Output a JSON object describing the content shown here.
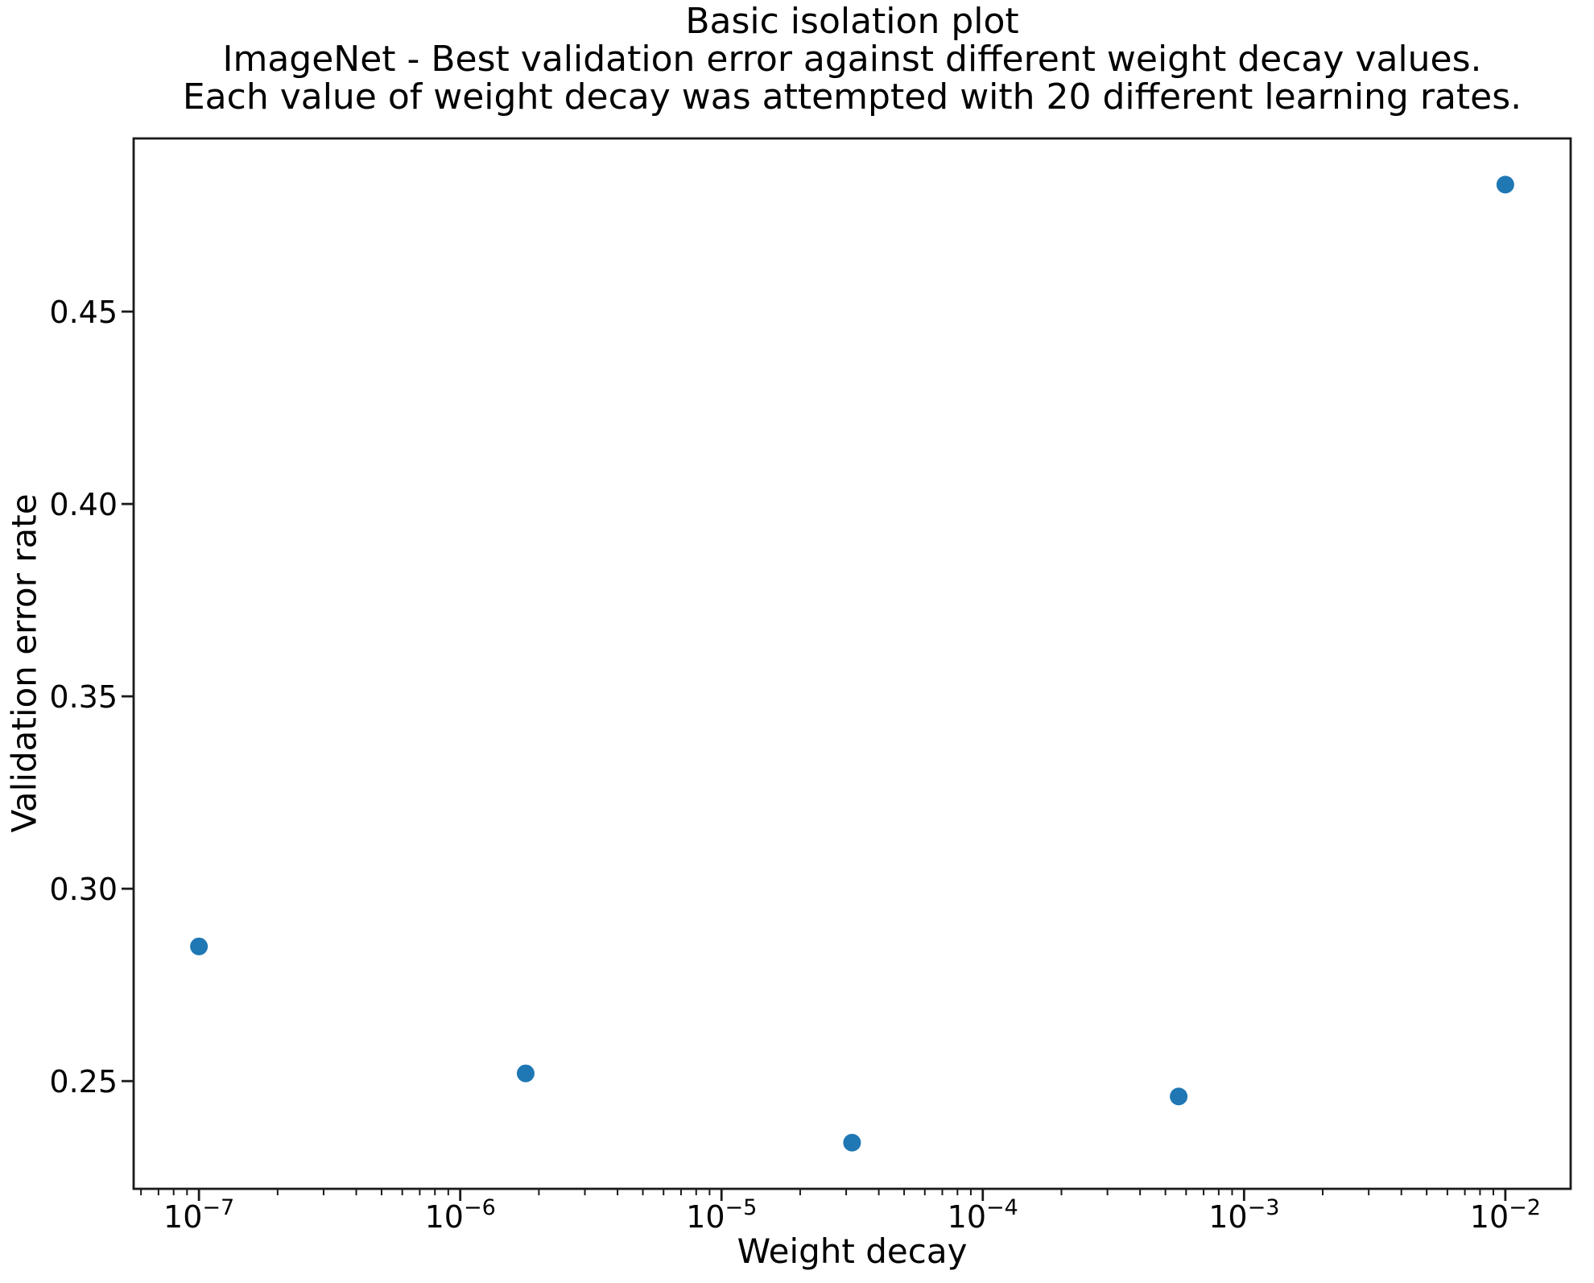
{
  "figure": {
    "background": "#ffffff"
  },
  "chart_data": {
    "type": "scatter",
    "title": "Basic isolation plot",
    "subtitle_line1": "ImageNet - Best validation error against different weight decay values.",
    "subtitle_line2": "Each value of weight decay was attempted with 20 different learning rates.",
    "xlabel": "Weight decay",
    "ylabel": "Validation error rate",
    "x_scale": "log",
    "grid": false,
    "points": [
      {
        "x": 1e-07,
        "y": 0.285
      },
      {
        "x": 1.78e-06,
        "y": 0.252
      },
      {
        "x": 3.16e-05,
        "y": 0.234
      },
      {
        "x": 0.000562,
        "y": 0.246
      },
      {
        "x": 0.01,
        "y": 0.483
      }
    ],
    "xlim_log10": [
      -7.25,
      -1.75
    ],
    "ylim": [
      0.222,
      0.495
    ],
    "x_major_tick_exponents": [
      -7,
      -6,
      -5,
      -4,
      -3,
      -2
    ],
    "y_tick_values": [
      0.25,
      0.3,
      0.35,
      0.4,
      0.45
    ],
    "marker_color": "#1f77b4",
    "marker_radius": 11,
    "axis_color": "#1a1a1a",
    "text_color": "#000000"
  }
}
